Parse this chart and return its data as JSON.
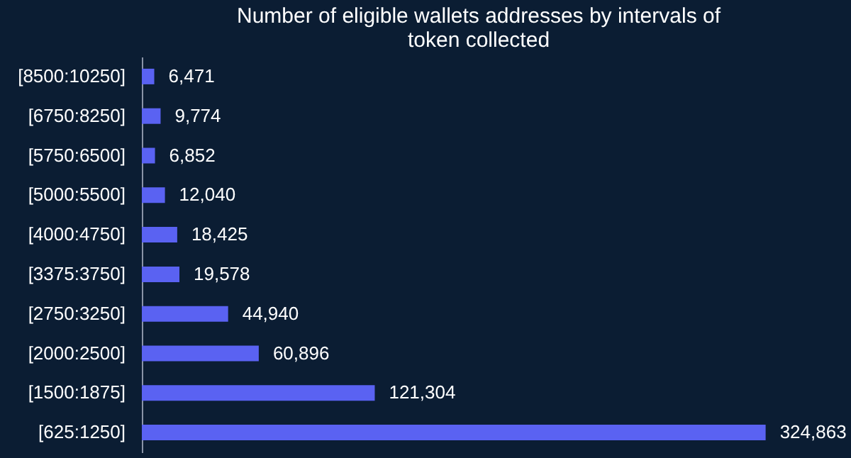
{
  "chart_data": {
    "type": "bar",
    "orientation": "horizontal",
    "title": [
      "Number of eligible wallets addresses by intervals of",
      "token collected"
    ],
    "categories": [
      "[8500:10250]",
      "[6750:8250]",
      "[5750:6500]",
      "[5000:5500]",
      "[4000:4750]",
      "[3375:3750]",
      "[2750:3250]",
      "[2000:2500]",
      "[1500:1875]",
      "[625:1250]"
    ],
    "values": [
      6471,
      9774,
      6852,
      12040,
      18425,
      19578,
      44940,
      60896,
      121304,
      324863
    ],
    "value_labels": [
      "6,471",
      "9,774",
      "6,852",
      "12,040",
      "18,425",
      "19,578",
      "44,940",
      "60,896",
      "121,304",
      "324,863"
    ],
    "color": "#5a62f2"
  }
}
